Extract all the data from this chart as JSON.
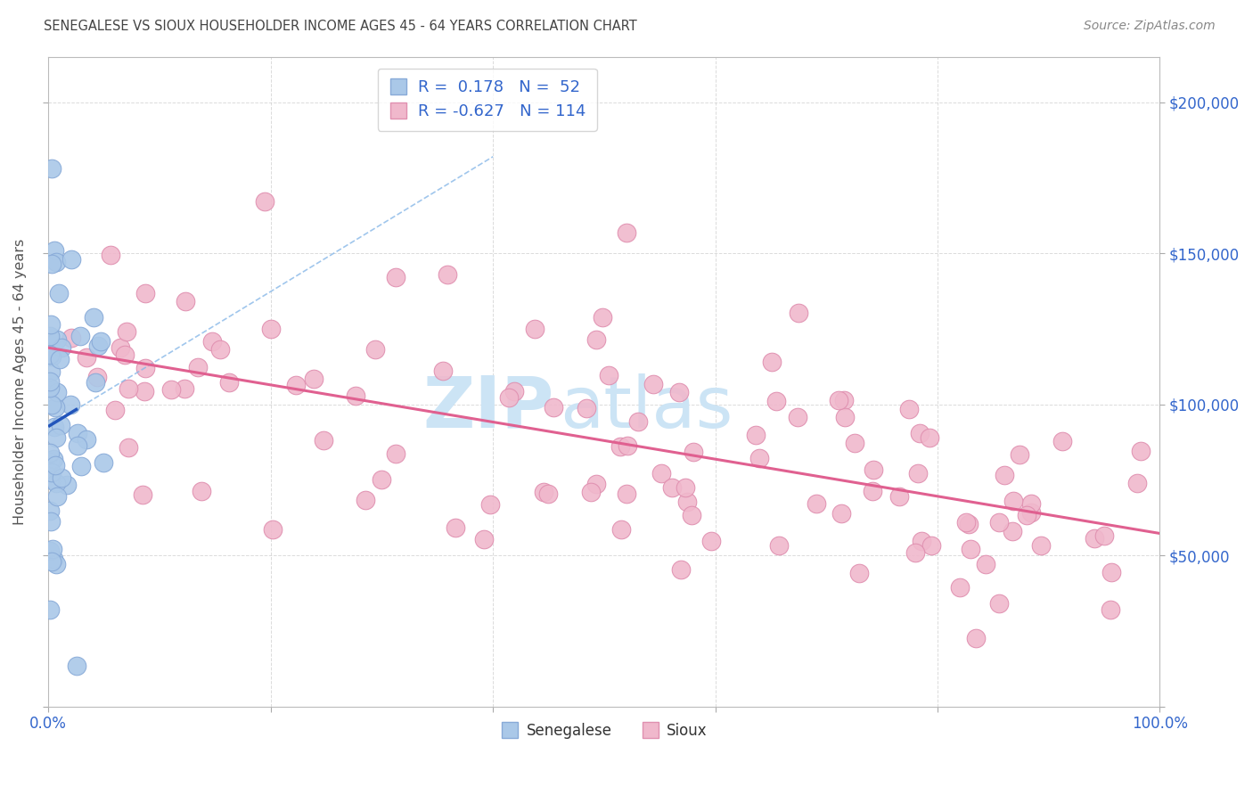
{
  "title": "SENEGALESE VS SIOUX HOUSEHOLDER INCOME AGES 45 - 64 YEARS CORRELATION CHART",
  "source": "Source: ZipAtlas.com",
  "ylabel": "Householder Income Ages 45 - 64 years",
  "xlim": [
    0,
    1.0
  ],
  "ylim": [
    0,
    215000
  ],
  "yticks": [
    0,
    50000,
    100000,
    150000,
    200000
  ],
  "right_ytick_labels": [
    "",
    "$50,000",
    "$100,000",
    "$150,000",
    "$200,000"
  ],
  "xtick_positions": [
    0.0,
    0.2,
    0.4,
    0.6,
    0.8,
    1.0
  ],
  "xtick_labels": [
    "0.0%",
    "",
    "",
    "",
    "",
    "100.0%"
  ],
  "senegalese_color": "#aac8e8",
  "senegalese_edge": "#88aad8",
  "sioux_color": "#f0b8cc",
  "sioux_edge": "#e090b0",
  "senegalese_line_color": "#2255bb",
  "senegalese_dash_color": "#88b8e8",
  "sioux_line_color": "#e06090",
  "background_color": "#ffffff",
  "grid_color": "#cccccc",
  "title_color": "#444444",
  "source_color": "#888888",
  "watermark_zip": "ZIP",
  "watermark_atlas": "atlas",
  "watermark_color": "#cce4f5",
  "R_senegalese": 0.178,
  "N_senegalese": 52,
  "R_sioux": -0.627,
  "N_sioux": 114,
  "tick_label_color": "#3366cc",
  "ylabel_color": "#555555",
  "legend_label_color": "#3366cc"
}
